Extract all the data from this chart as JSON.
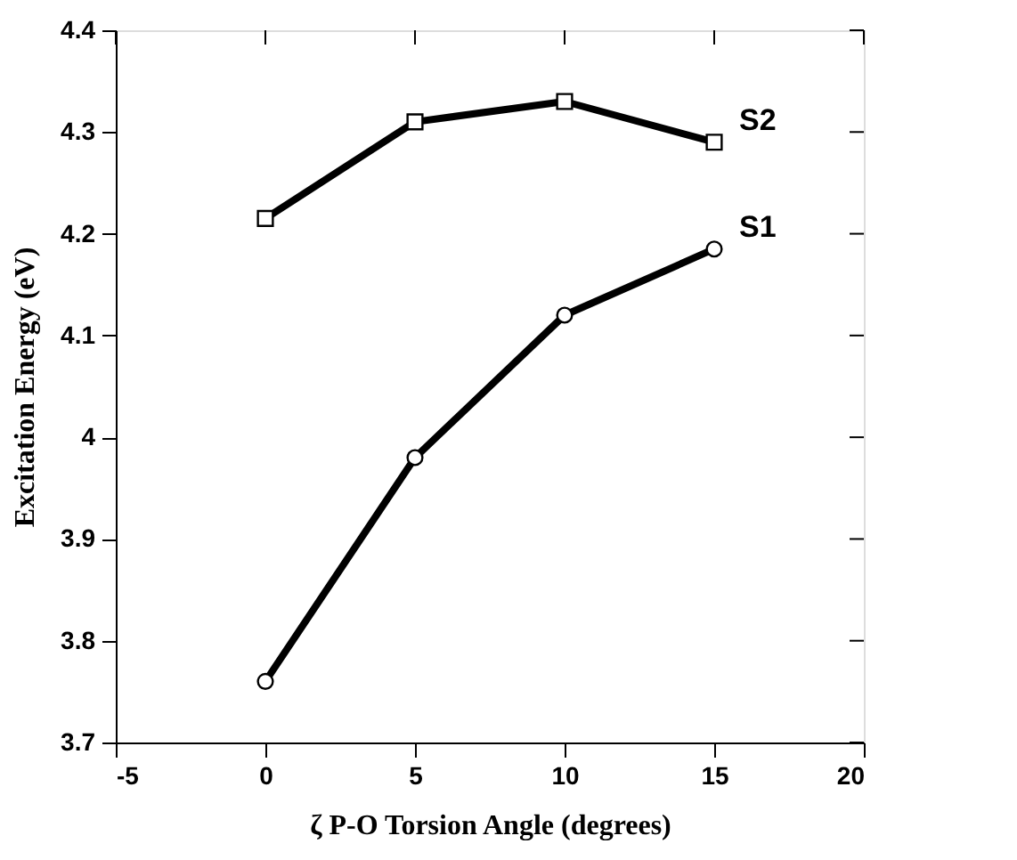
{
  "chart_data": {
    "type": "line",
    "xlabel": "ζ P-O Torsion Angle (degrees)",
    "ylabel": "Excitation Energy (eV)",
    "x": [
      0,
      5,
      10,
      15
    ],
    "series": [
      {
        "name": "S2",
        "color": "#000000",
        "marker": "square",
        "values": [
          4.215,
          4.31,
          4.33,
          4.29
        ]
      },
      {
        "name": "S1",
        "color": "#000000",
        "marker": "circle",
        "values": [
          3.76,
          3.98,
          4.12,
          4.185
        ]
      }
    ],
    "xlim": [
      -5,
      20
    ],
    "xticks": [
      -5,
      0,
      5,
      10,
      15,
      20
    ],
    "ylim": [
      3.7,
      4.4
    ],
    "yticks": [
      3.7,
      3.8,
      3.9,
      4,
      4.1,
      4.2,
      4.3,
      4.4
    ],
    "grid": false,
    "line_style": "solid"
  }
}
